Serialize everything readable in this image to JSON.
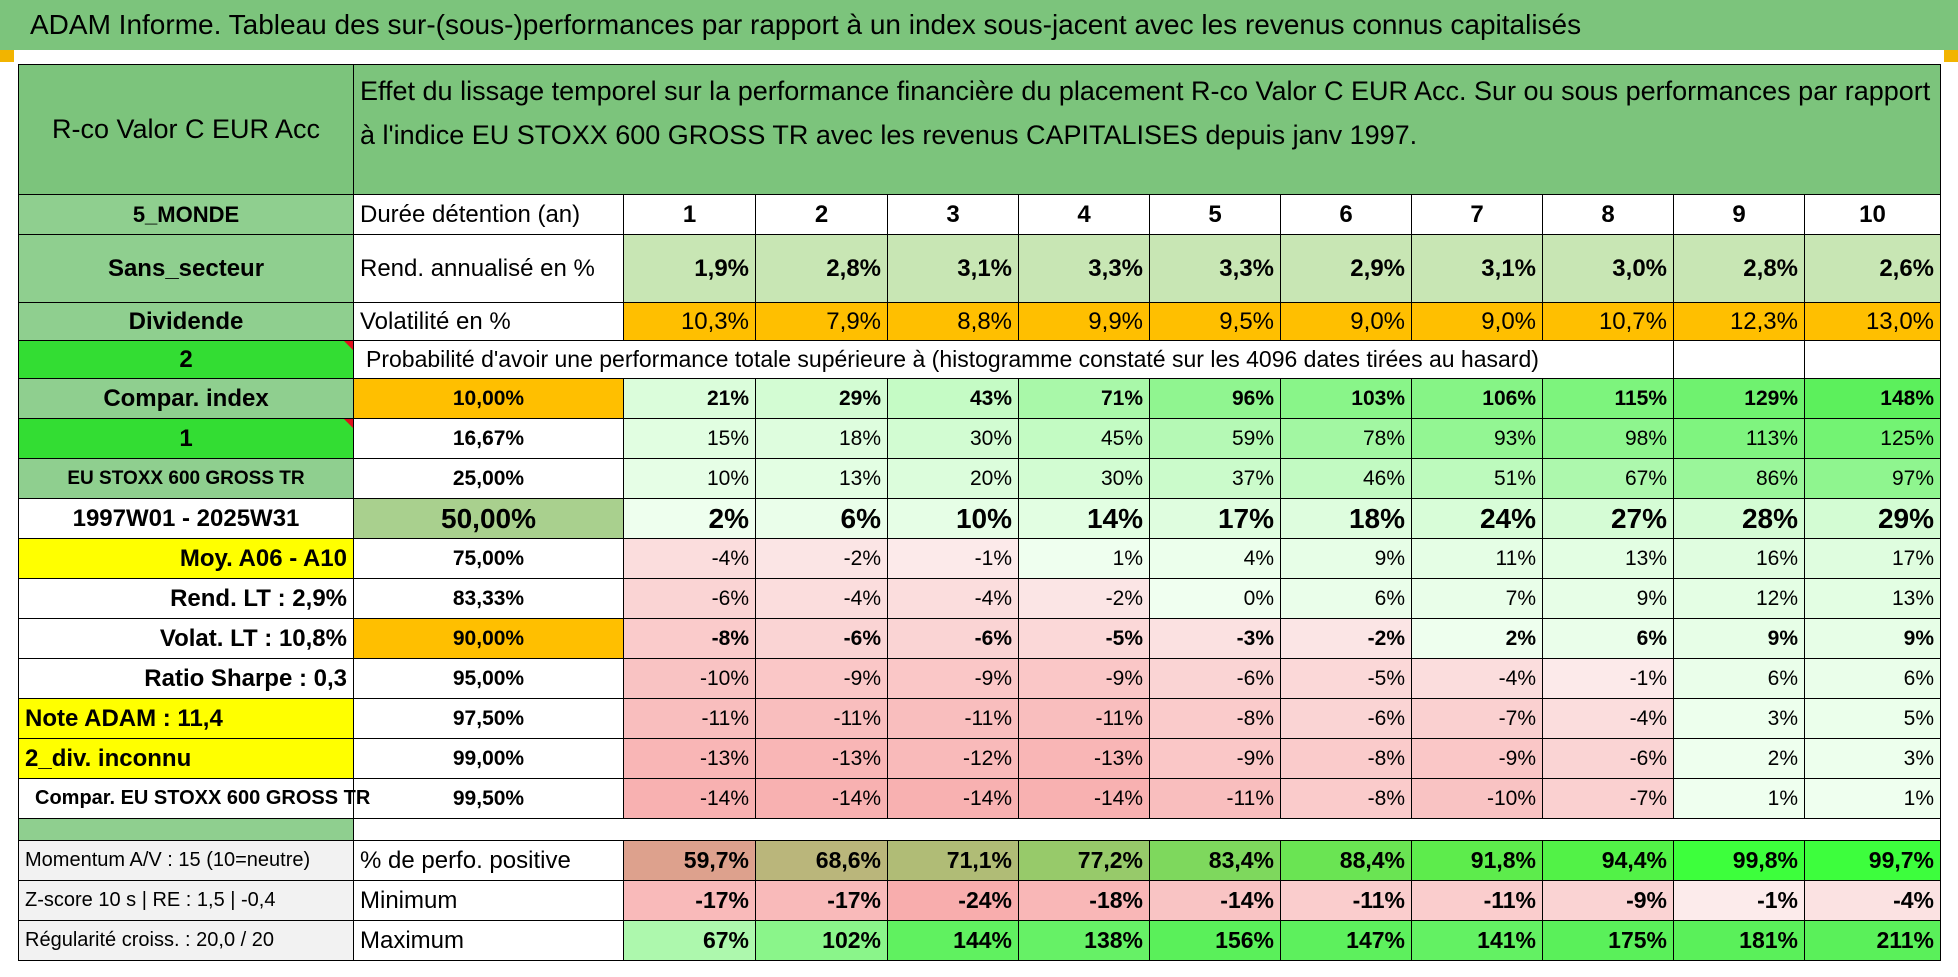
{
  "title": "ADAM Informe. Tableau des sur-(sous-)performances par rapport à un index sous-jacent avec les revenus connus capitalisés",
  "colors": {
    "title_bg": "#7cc47c",
    "orange": "#ffbf00",
    "yellow": "#ffff00",
    "bright_green": "#33dd33",
    "red_text": "#e0101e"
  },
  "header": {
    "fund_name": "R-co Valor C EUR Acc",
    "description": "Effet du lissage temporel sur la performance financière du placement R-co Valor C EUR Acc. Sur ou sous performances par rapport à l'indice EU STOXX 600 GROSS TR avec les revenus CAPITALISES depuis janv 1997."
  },
  "left": {
    "region": "5_MONDE",
    "sector": "Sans_secteur",
    "dividend": "Dividende",
    "two": "2",
    "compar_index": "Compar. index",
    "one": "1",
    "index_name": "EU STOXX 600 GROSS TR",
    "period": "1997W01 - 2025W31",
    "moy": "Moy. A06 - A10",
    "rend_lt": "Rend. LT :    2,9%",
    "volat_lt": "Volat. LT :    10,8%",
    "ratio_sharpe": "Ratio Sharpe :     0,3",
    "note_adam": "Note ADAM : 11,4",
    "div_inconnu": "2_div. inconnu",
    "compar_full": "Compar. EU STOXX 600 GROSS TR",
    "momentum": "Momentum A/V : 15 (10=neutre)",
    "zscore": "Z-score 10 s | RE : 1,5 | -0,4",
    "regularite": "Régularité croiss. : 20,0 / 20"
  },
  "rows": {
    "duree_label": "Durée détention (an)",
    "years": [
      "1",
      "2",
      "3",
      "4",
      "5",
      "6",
      "7",
      "8",
      "9",
      "10"
    ],
    "rend_label": "Rend. annualisé en %",
    "rend": [
      "1,9%",
      "2,8%",
      "3,1%",
      "3,3%",
      "3,3%",
      "2,9%",
      "3,1%",
      "3,0%",
      "2,8%",
      "2,6%"
    ],
    "vol_label": "Volatilité en %",
    "vol": [
      "10,3%",
      "7,9%",
      "8,8%",
      "9,9%",
      "9,5%",
      "9,0%",
      "9,0%",
      "10,7%",
      "12,3%",
      "13,0%"
    ],
    "prob_label": "Probabilité d'avoir une performance totale supérieure à (histogramme constaté sur les 4096 dates tirées au hasard)"
  },
  "percentiles": [
    {
      "p": "10,00%",
      "v": [
        "21%",
        "29%",
        "43%",
        "71%",
        "96%",
        "103%",
        "106%",
        "115%",
        "129%",
        "148%"
      ]
    },
    {
      "p": "16,67%",
      "v": [
        "15%",
        "18%",
        "30%",
        "45%",
        "59%",
        "78%",
        "93%",
        "98%",
        "113%",
        "125%"
      ]
    },
    {
      "p": "25,00%",
      "v": [
        "10%",
        "13%",
        "20%",
        "30%",
        "37%",
        "46%",
        "51%",
        "67%",
        "86%",
        "97%"
      ]
    },
    {
      "p": "50,00%",
      "v": [
        "2%",
        "6%",
        "10%",
        "14%",
        "17%",
        "18%",
        "24%",
        "27%",
        "28%",
        "29%"
      ]
    },
    {
      "p": "75,00%",
      "v": [
        "-4%",
        "-2%",
        "-1%",
        "1%",
        "4%",
        "9%",
        "11%",
        "13%",
        "16%",
        "17%"
      ]
    },
    {
      "p": "83,33%",
      "v": [
        "-6%",
        "-4%",
        "-4%",
        "-2%",
        "0%",
        "6%",
        "7%",
        "9%",
        "12%",
        "13%"
      ]
    },
    {
      "p": "90,00%",
      "v": [
        "-8%",
        "-6%",
        "-6%",
        "-5%",
        "-3%",
        "-2%",
        "2%",
        "6%",
        "9%",
        "9%"
      ]
    },
    {
      "p": "95,00%",
      "v": [
        "-10%",
        "-9%",
        "-9%",
        "-9%",
        "-6%",
        "-5%",
        "-4%",
        "-1%",
        "6%",
        "6%"
      ]
    },
    {
      "p": "97,50%",
      "v": [
        "-11%",
        "-11%",
        "-11%",
        "-11%",
        "-8%",
        "-6%",
        "-7%",
        "-4%",
        "3%",
        "5%"
      ]
    },
    {
      "p": "99,00%",
      "v": [
        "-13%",
        "-13%",
        "-12%",
        "-13%",
        "-9%",
        "-8%",
        "-9%",
        "-6%",
        "2%",
        "3%"
      ]
    },
    {
      "p": "99,50%",
      "v": [
        "-14%",
        "-14%",
        "-14%",
        "-14%",
        "-11%",
        "-8%",
        "-10%",
        "-7%",
        "1%",
        "1%"
      ]
    }
  ],
  "bottom": {
    "pos_label": "% de perfo. positive",
    "pos": [
      "59,7%",
      "68,6%",
      "71,1%",
      "77,2%",
      "83,4%",
      "88,4%",
      "91,8%",
      "94,4%",
      "99,8%",
      "99,7%"
    ],
    "min_label": "Minimum",
    "min": [
      "-17%",
      "-17%",
      "-24%",
      "-18%",
      "-14%",
      "-11%",
      "-11%",
      "-9%",
      "-1%",
      "-4%"
    ],
    "max_label": "Maximum",
    "max": [
      "67%",
      "102%",
      "144%",
      "138%",
      "156%",
      "147%",
      "141%",
      "175%",
      "181%",
      "211%"
    ]
  }
}
